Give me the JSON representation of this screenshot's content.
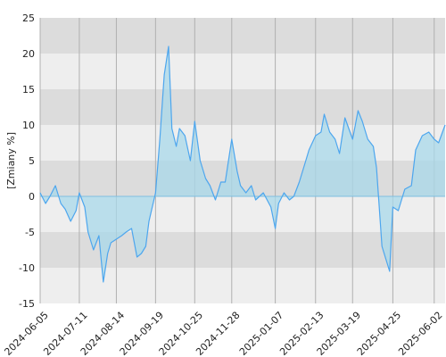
{
  "chart_data": {
    "type": "area",
    "title": "",
    "xlabel": "",
    "ylabel": "[Zmiany %]",
    "ylim": [
      -15,
      25
    ],
    "yticks": [
      -15,
      -10,
      -5,
      0,
      5,
      10,
      15,
      20,
      25
    ],
    "xticks": [
      "2024-06-05",
      "2024-07-11",
      "2024-08-14",
      "2024-09-19",
      "2024-10-25",
      "2024-11-28",
      "2025-01-07",
      "2025-02-13",
      "2025-03-19",
      "2025-04-25",
      "2025-06-02"
    ],
    "x_range": [
      "2024-06-05",
      "2025-06-12"
    ],
    "grid": "vertical lines at x ticks; alternating horizontal bands every 5",
    "colors": {
      "line": "#4da6ee",
      "fill": "#a8d8ea",
      "band_dark": "#dcdcdc",
      "band_light": "#eeeeee",
      "grid": "#b0b0b0",
      "zero_line": "#7fbfe0"
    },
    "series": [
      {
        "name": "",
        "x": [
          "2024-06-05",
          "2024-06-10",
          "2024-06-14",
          "2024-06-19",
          "2024-06-24",
          "2024-06-28",
          "2024-07-03",
          "2024-07-08",
          "2024-07-11",
          "2024-07-16",
          "2024-07-19",
          "2024-07-24",
          "2024-07-29",
          "2024-08-02",
          "2024-08-06",
          "2024-08-09",
          "2024-08-14",
          "2024-08-19",
          "2024-08-23",
          "2024-08-28",
          "2024-09-02",
          "2024-09-06",
          "2024-09-10",
          "2024-09-13",
          "2024-09-19",
          "2024-09-23",
          "2024-09-27",
          "2024-10-01",
          "2024-10-04",
          "2024-10-08",
          "2024-10-11",
          "2024-10-16",
          "2024-10-21",
          "2024-10-25",
          "2024-10-30",
          "2024-11-04",
          "2024-11-08",
          "2024-11-13",
          "2024-11-18",
          "2024-11-22",
          "2024-11-28",
          "2024-12-03",
          "2024-12-06",
          "2024-12-11",
          "2024-12-16",
          "2024-12-20",
          "2024-12-27",
          "2025-01-03",
          "2025-01-07",
          "2025-01-10",
          "2025-01-15",
          "2025-01-20",
          "2025-01-24",
          "2025-01-29",
          "2025-02-03",
          "2025-02-07",
          "2025-02-13",
          "2025-02-18",
          "2025-02-21",
          "2025-02-26",
          "2025-03-03",
          "2025-03-07",
          "2025-03-12",
          "2025-03-19",
          "2025-03-24",
          "2025-03-28",
          "2025-04-02",
          "2025-04-07",
          "2025-04-10",
          "2025-04-15",
          "2025-04-22",
          "2025-04-25",
          "2025-04-30",
          "2025-05-06",
          "2025-05-12",
          "2025-05-16",
          "2025-05-22",
          "2025-05-28",
          "2025-06-02",
          "2025-06-06",
          "2025-06-12"
        ],
        "y": [
          0.5,
          -1.0,
          0.0,
          1.5,
          -1.0,
          -1.8,
          -3.5,
          -2.0,
          0.5,
          -1.5,
          -5.0,
          -7.5,
          -5.5,
          -12.0,
          -8.0,
          -6.5,
          -6.0,
          -5.5,
          -5.0,
          -4.5,
          -8.5,
          -8.0,
          -7.0,
          -3.5,
          0.5,
          8.0,
          17.0,
          21.0,
          9.5,
          7.0,
          9.5,
          8.5,
          5.0,
          10.5,
          5.0,
          2.5,
          1.5,
          -0.5,
          2.0,
          2.0,
          8.0,
          3.5,
          1.5,
          0.5,
          1.5,
          -0.5,
          0.5,
          -1.5,
          -4.5,
          -1.0,
          0.5,
          -0.5,
          0.0,
          2.0,
          4.5,
          6.5,
          8.5,
          9.0,
          11.5,
          9.0,
          8.0,
          6.0,
          11.0,
          8.0,
          12.0,
          10.5,
          8.0,
          7.0,
          4.0,
          -7.0,
          -10.5,
          -1.5,
          -2.0,
          1.0,
          1.5,
          6.5,
          8.5,
          9.0,
          8.0,
          7.5,
          10.0
        ]
      }
    ]
  }
}
